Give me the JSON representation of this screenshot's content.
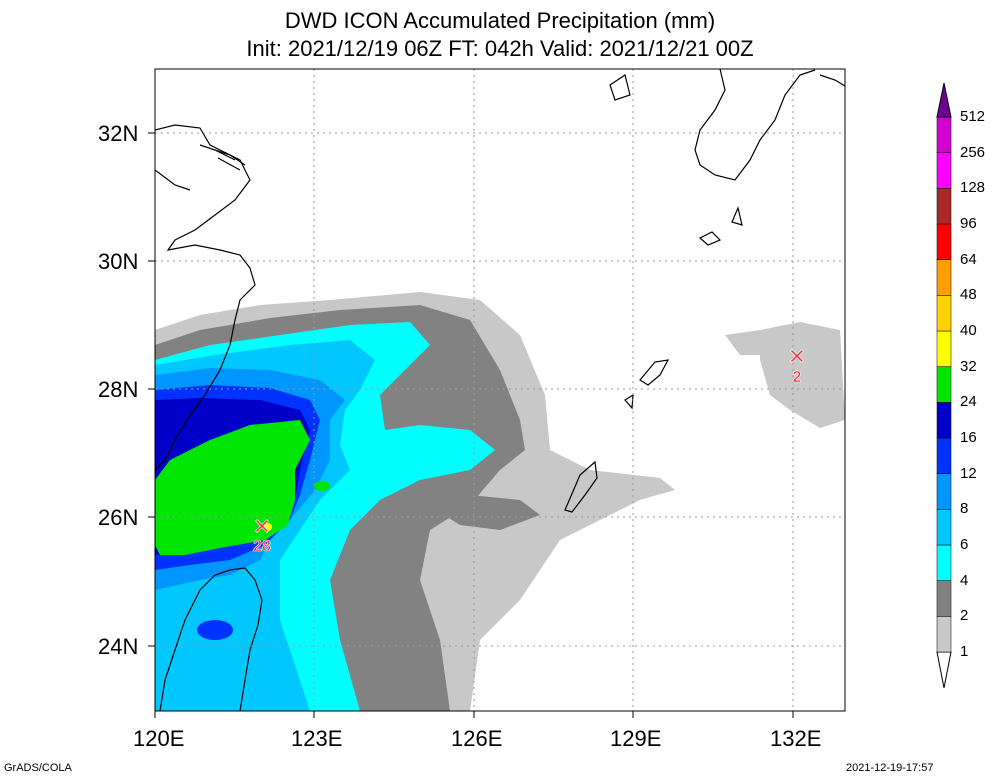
{
  "title_line1": "DWD ICON Accumulated Precipitation (mm)",
  "title_line2": "Init: 2021/12/19 06Z  FT: 042h  Valid: 2021/12/21 00Z",
  "footer_left": "GrADS/COLA",
  "footer_right": "2021-12-19-17:57",
  "axes": {
    "lon_ticks": [
      "120E",
      "123E",
      "126E",
      "129E",
      "132E"
    ],
    "lat_ticks": [
      "32N",
      "30N",
      "28N",
      "26N",
      "24N"
    ]
  },
  "markers": [
    {
      "name": "max-marker",
      "symbol": "✕",
      "value": "28",
      "color": "#e8323c"
    },
    {
      "name": "min-marker",
      "symbol": "✕",
      "value": "2",
      "color": "#e8323c"
    }
  ],
  "colorbar": {
    "levels": [
      "1",
      "2",
      "4",
      "6",
      "8",
      "12",
      "16",
      "24",
      "32",
      "40",
      "48",
      "64",
      "96",
      "128",
      "256",
      "512"
    ],
    "colors": [
      "#c8c8c8",
      "#828282",
      "#00ffff",
      "#00c8ff",
      "#0096ff",
      "#0032ff",
      "#0000c8",
      "#00e600",
      "#ffff00",
      "#ffd200",
      "#ffa000",
      "#ff0000",
      "#aa2828",
      "#ff00ff",
      "#d200d2",
      "#9600be",
      "#6e0096"
    ]
  },
  "land_color": "#ffffff",
  "coast_color": "#000000"
}
